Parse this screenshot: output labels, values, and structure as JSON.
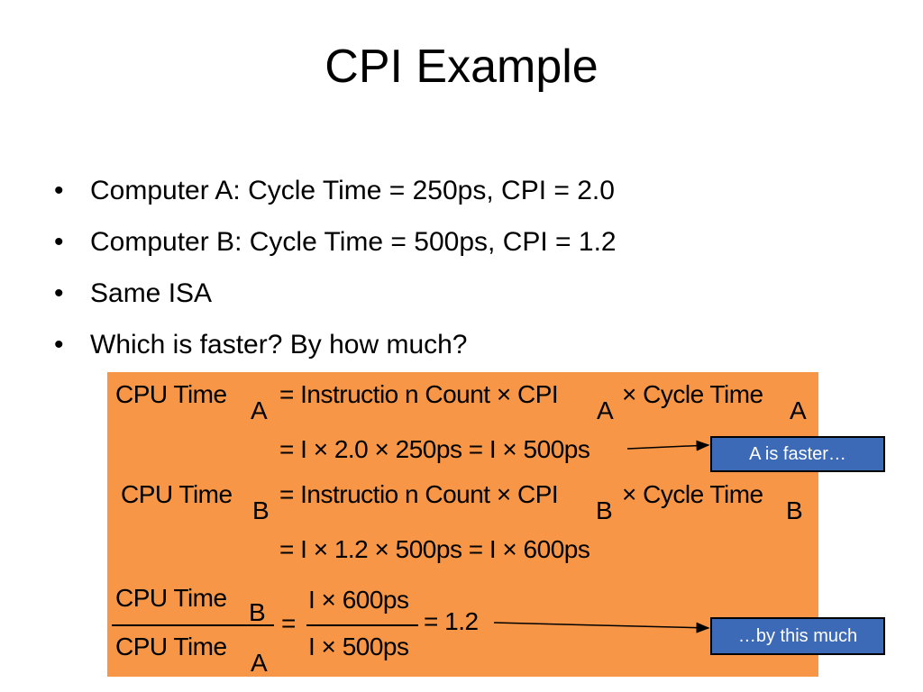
{
  "slide": {
    "title": "CPI Example",
    "bullet_glyph": "•",
    "bullets": [
      "Computer A: Cycle Time = 250ps, CPI = 2.0",
      "Computer B: Cycle Time = 500ps, CPI = 1.2",
      "Same ISA",
      "Which is faster?  By how much?"
    ]
  },
  "equations": {
    "line1": {
      "lhs": "CPU Time",
      "lhs_sub": "A",
      "rhs_a": "= Instructio n Count × CPI",
      "rhs_a_sub": "A",
      "rhs_b": "× Cycle Time",
      "rhs_b_sub": "A"
    },
    "line2": "= I × 2.0 × 250ps = I × 500ps",
    "line3": {
      "lhs": "CPU Time",
      "lhs_sub": "B",
      "rhs_a": "= Instructio n Count × CPI",
      "rhs_a_sub": "B",
      "rhs_b": "× Cycle Time",
      "rhs_b_sub": "B"
    },
    "line4": "= I × 1.2 × 500ps = I × 600ps",
    "ratio": {
      "num": "CPU Time",
      "num_sub": "B",
      "den": "CPU Time",
      "den_sub": "A",
      "eq1": "=",
      "num2": "I × 600ps",
      "den2": "I × 500ps",
      "result": "= 1.2"
    }
  },
  "callouts": {
    "faster": "A is faster…",
    "much": "…by this much"
  },
  "colors": {
    "equation_box": "#F79646",
    "callout_fill": "#3C6AB7",
    "callout_text": "#FFFFFF"
  }
}
